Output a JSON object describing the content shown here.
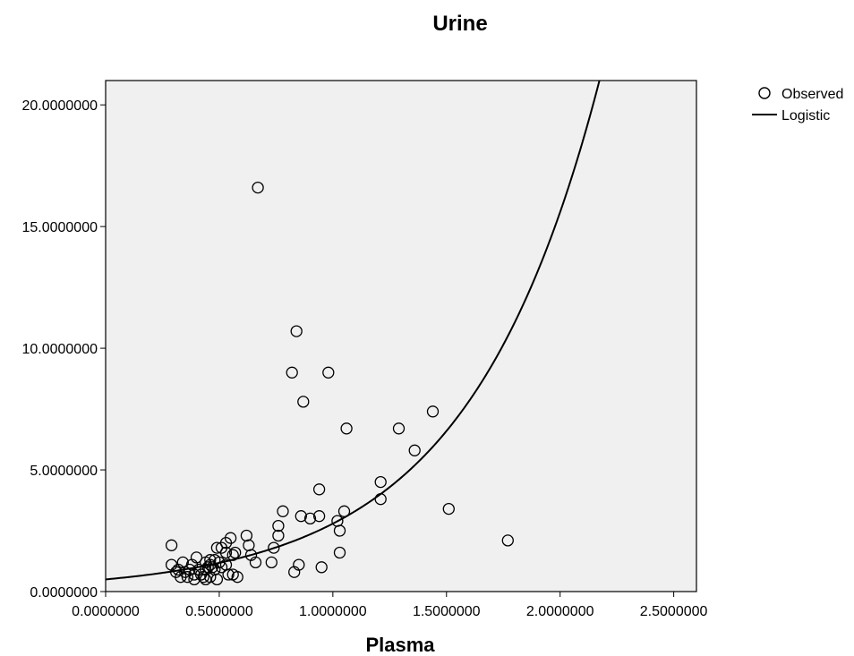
{
  "chart_data": {
    "type": "scatter",
    "title": "Urine",
    "xlabel": "Plasma",
    "ylabel": "",
    "xlim": [
      0,
      2.6
    ],
    "ylim": [
      0,
      21.0
    ],
    "xticks": [
      {
        "value": 0,
        "label": "0.0000000"
      },
      {
        "value": 0.5,
        "label": "0.5000000"
      },
      {
        "value": 1.0,
        "label": "1.0000000"
      },
      {
        "value": 1.5,
        "label": "1.5000000"
      },
      {
        "value": 2.0,
        "label": "2.0000000"
      },
      {
        "value": 2.5,
        "label": "2.5000000"
      }
    ],
    "yticks": [
      {
        "value": 0,
        "label": "0.0000000"
      },
      {
        "value": 5,
        "label": "5.0000000"
      },
      {
        "value": 10,
        "label": "10.0000000"
      },
      {
        "value": 15,
        "label": "15.0000000"
      },
      {
        "value": 20,
        "label": "20.0000000"
      }
    ],
    "grid": false,
    "legend_position": "top-right",
    "series": [
      {
        "name": "Observed",
        "kind": "points",
        "points": [
          [
            0.67,
            16.6
          ],
          [
            0.84,
            10.7
          ],
          [
            0.82,
            9.0
          ],
          [
            0.98,
            9.0
          ],
          [
            0.87,
            7.8
          ],
          [
            1.44,
            7.4
          ],
          [
            1.29,
            6.7
          ],
          [
            1.06,
            6.7
          ],
          [
            1.36,
            5.8
          ],
          [
            1.21,
            4.5
          ],
          [
            0.94,
            4.2
          ],
          [
            1.21,
            3.8
          ],
          [
            1.51,
            3.4
          ],
          [
            1.05,
            3.3
          ],
          [
            0.78,
            3.3
          ],
          [
            0.86,
            3.1
          ],
          [
            0.94,
            3.1
          ],
          [
            0.9,
            3.0
          ],
          [
            1.02,
            2.9
          ],
          [
            0.76,
            2.7
          ],
          [
            1.03,
            2.5
          ],
          [
            0.76,
            2.3
          ],
          [
            0.62,
            2.3
          ],
          [
            0.55,
            2.2
          ],
          [
            1.77,
            2.1
          ],
          [
            0.53,
            2.0
          ],
          [
            0.63,
            1.9
          ],
          [
            0.29,
            1.9
          ],
          [
            0.74,
            1.8
          ],
          [
            0.49,
            1.8
          ],
          [
            0.51,
            1.8
          ],
          [
            0.57,
            1.6
          ],
          [
            0.53,
            1.6
          ],
          [
            1.03,
            1.6
          ],
          [
            0.64,
            1.5
          ],
          [
            0.56,
            1.5
          ],
          [
            0.4,
            1.4
          ],
          [
            0.48,
            1.3
          ],
          [
            0.46,
            1.3
          ],
          [
            0.5,
            1.2
          ],
          [
            0.73,
            1.2
          ],
          [
            0.66,
            1.2
          ],
          [
            0.53,
            1.1
          ],
          [
            0.44,
            1.2
          ],
          [
            0.34,
            1.2
          ],
          [
            0.29,
            1.1
          ],
          [
            0.38,
            1.1
          ],
          [
            0.46,
            1.1
          ],
          [
            0.51,
            1.0
          ],
          [
            0.47,
            1.0
          ],
          [
            0.45,
            1.0
          ],
          [
            0.85,
            1.1
          ],
          [
            0.95,
            1.0
          ],
          [
            0.37,
            0.9
          ],
          [
            0.32,
            0.9
          ],
          [
            0.41,
            0.9
          ],
          [
            0.44,
            0.9
          ],
          [
            0.48,
            0.9
          ],
          [
            0.83,
            0.8
          ],
          [
            0.31,
            0.8
          ],
          [
            0.35,
            0.8
          ],
          [
            0.39,
            0.7
          ],
          [
            0.42,
            0.7
          ],
          [
            0.54,
            0.7
          ],
          [
            0.58,
            0.6
          ],
          [
            0.46,
            0.6
          ],
          [
            0.33,
            0.6
          ],
          [
            0.36,
            0.6
          ],
          [
            0.43,
            0.6
          ],
          [
            0.49,
            0.5
          ],
          [
            0.39,
            0.5
          ],
          [
            0.44,
            0.5
          ],
          [
            0.56,
            0.7
          ]
        ]
      },
      {
        "name": "Logistic",
        "kind": "curve",
        "model": "y = 0.5 * exp(1.72 * x)",
        "a": 0.5,
        "b": 1.72
      }
    ]
  },
  "colors": {
    "plot_background": "#f0f0f0",
    "marker_stroke": "#000000",
    "curve": "#000000",
    "frame": "#000000"
  }
}
